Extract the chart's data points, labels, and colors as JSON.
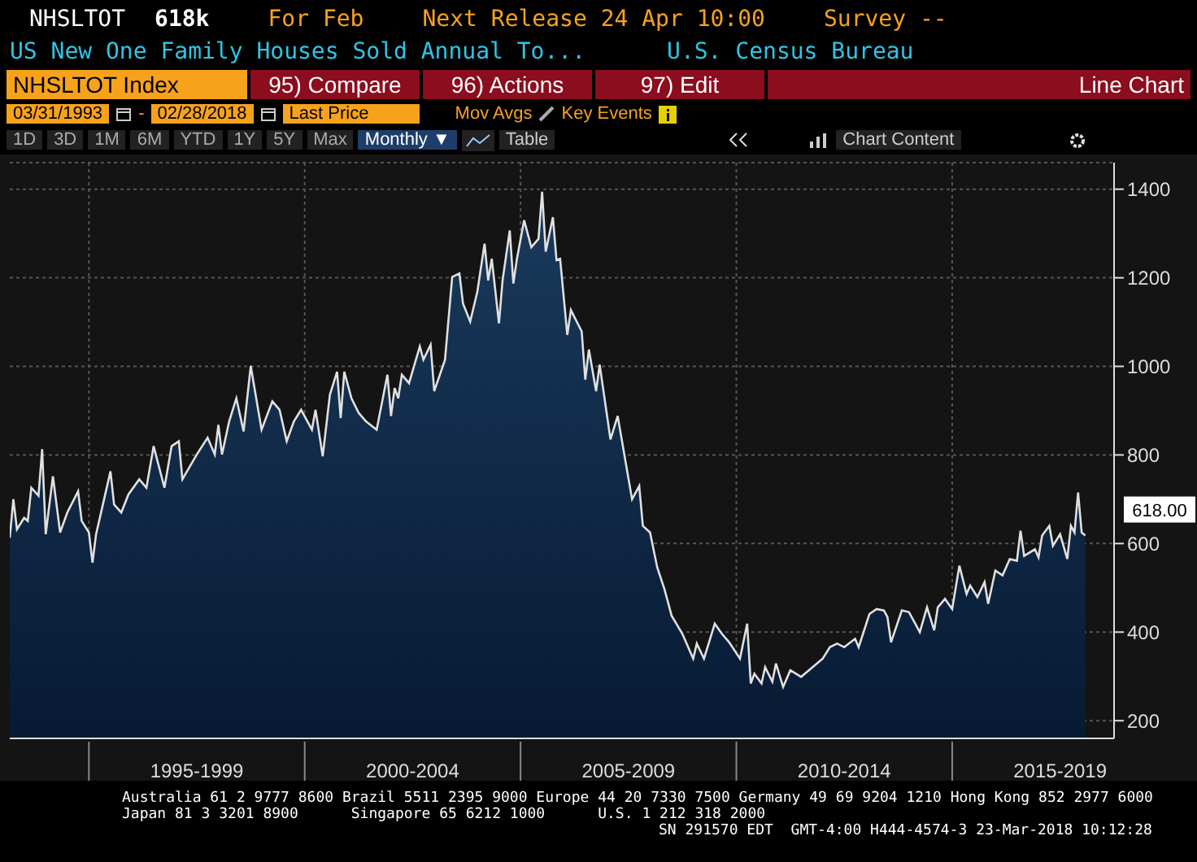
{
  "chart_data": {
    "type": "area",
    "title": "US New One Family Houses Sold Annual To...",
    "annotations": [
      "NHSLTOT",
      "618k",
      "For Feb",
      "Next Release 24 Apr 10:00",
      "Survey --",
      "U.S. Census Bureau",
      "NHSLTOT Index",
      "95) Compare",
      "96) Actions",
      "97) Edit",
      "Line Chart",
      "03/31/1993",
      "-",
      "02/28/2018",
      "Last Price",
      "Mov Avgs",
      "Key Events",
      "1D",
      "3D",
      "1M",
      "6M",
      "YTD",
      "1Y",
      "5Y",
      "Max",
      "Monthly ▼",
      "Table",
      "Chart Content",
      "Australia 61 2 9777 8600 Brazil 5511 2395 9000 Europe 44 20 7330 7500 Germany 49 69 9204 1210 Hong Kong 852 2977 6000",
      "Japan 81 3 3201 8900      Singapore 65 6212 1000      U.S. 1 212 318 2000",
      "SN 291570 EDT  GMT-4:00 H444-4574-3 23-Mar-2018 10:12:28",
      {
        "text": "618.00",
        "x": "2018-02",
        "y": 618
      }
    ],
    "x": [
      "1993-03",
      "1993-04",
      "1993-05",
      "1993-07",
      "1993-08",
      "1993-09",
      "1993-11",
      "1993-12",
      "1994-01",
      "1994-03",
      "1994-04",
      "1994-05",
      "1994-07",
      "1994-10",
      "1994-11",
      "1995-01",
      "1995-02",
      "1995-03",
      "1995-07",
      "1995-08",
      "1995-10",
      "1995-12",
      "1996-03",
      "1996-05",
      "1996-07",
      "1996-10",
      "1996-12",
      "1997-02",
      "1997-03",
      "1997-07",
      "1997-10",
      "1997-12",
      "1998-01",
      "1998-02",
      "1998-04",
      "1998-06",
      "1998-08",
      "1998-10",
      "1999-01",
      "1999-04",
      "1999-06",
      "1999-08",
      "1999-10",
      "1999-12",
      "2000-03",
      "2000-04",
      "2000-06",
      "2000-08",
      "2000-10",
      "2000-11",
      "2000-12",
      "2001-02",
      "2001-04",
      "2001-06",
      "2001-09",
      "2001-12",
      "2002-01",
      "2002-02",
      "2002-03",
      "2002-04",
      "2002-06",
      "2002-09",
      "2002-10",
      "2002-12",
      "2003-01",
      "2003-04",
      "2003-06",
      "2003-08",
      "2003-09",
      "2003-11",
      "2004-01",
      "2004-03",
      "2004-04",
      "2004-05",
      "2004-07",
      "2004-08",
      "2004-10",
      "2004-11",
      "2004-12",
      "2005-02",
      "2005-04",
      "2005-06",
      "2005-07",
      "2005-08",
      "2005-10",
      "2005-11",
      "2005-12",
      "2006-02",
      "2006-03",
      "2006-06",
      "2006-07",
      "2006-08",
      "2006-10",
      "2006-11",
      "2007-02",
      "2007-04",
      "2007-06",
      "2007-08",
      "2007-10",
      "2007-11",
      "2008-01",
      "2008-03",
      "2008-05",
      "2008-07",
      "2008-10",
      "2009-01",
      "2009-02",
      "2009-04",
      "2009-07",
      "2009-09",
      "2009-11",
      "2010-02",
      "2010-04",
      "2010-05",
      "2010-06",
      "2010-08",
      "2010-09",
      "2010-11",
      "2010-12",
      "2011-02",
      "2011-04",
      "2011-07",
      "2012-01",
      "2012-03",
      "2012-05",
      "2012-07",
      "2012-10",
      "2012-11",
      "2013-02",
      "2013-04",
      "2013-06",
      "2013-07",
      "2013-08",
      "2013-11",
      "2014-01",
      "2014-04",
      "2014-06",
      "2014-08",
      "2014-09",
      "2014-11",
      "2015-01",
      "2015-03",
      "2015-05",
      "2015-06",
      "2015-08",
      "2015-10",
      "2015-11",
      "2016-01",
      "2016-03",
      "2016-05",
      "2016-07",
      "2016-08",
      "2016-09",
      "2016-12",
      "2017-01",
      "2017-02",
      "2017-04",
      "2017-05",
      "2017-07",
      "2017-09",
      "2017-10",
      "2017-11",
      "2017-12",
      "2018-01",
      "2018-02"
    ],
    "series": [
      {
        "color": "#e0e0e0",
        "values": [
          613,
          700,
          632,
          658,
          651,
          726,
          708,
          813,
          621,
          752,
          688,
          625,
          670,
          718,
          651,
          625,
          557,
          621,
          763,
          688,
          670,
          711,
          745,
          726,
          820,
          726,
          820,
          831,
          745,
          801,
          839,
          801,
          868,
          801,
          876,
          928,
          853,
          1001,
          857,
          921,
          902,
          831,
          876,
          902,
          857,
          902,
          797,
          936,
          988,
          883,
          988,
          928,
          895,
          876,
          857,
          981,
          888,
          951,
          928,
          981,
          962,
          1045,
          1015,
          1049,
          944,
          1015,
          1202,
          1210,
          1142,
          1101,
          1169,
          1277,
          1194,
          1243,
          1097,
          1194,
          1307,
          1187,
          1243,
          1330,
          1269,
          1288,
          1394,
          1259,
          1337,
          1240,
          1243,
          1071,
          1127,
          1079,
          970,
          1038,
          944,
          1004,
          835,
          888,
          794,
          700,
          730,
          640,
          625,
          546,
          497,
          437,
          396,
          340,
          374,
          340,
          419,
          396,
          377,
          340,
          419,
          284,
          306,
          284,
          321,
          288,
          329,
          276,
          314,
          299,
          340,
          366,
          374,
          366,
          385,
          366,
          441,
          452,
          449,
          434,
          377,
          449,
          445,
          400,
          456,
          404,
          456,
          475,
          452,
          550,
          486,
          505,
          479,
          513,
          464,
          539,
          528,
          565,
          561,
          629,
          572,
          587,
          569,
          618,
          640,
          595,
          621,
          565,
          640,
          625,
          715,
          625,
          618
        ]
      }
    ],
    "xlim": [
      "1993-03",
      "2018-10"
    ],
    "xticks": [
      {
        "value": "1995-01",
        "label": null
      },
      {
        "value": "1997-07",
        "label": "1995-1999"
      },
      {
        "value": "2000-01",
        "label": null
      },
      {
        "value": "2002-07",
        "label": "2000-2004"
      },
      {
        "value": "2005-01",
        "label": null
      },
      {
        "value": "2007-07",
        "label": "2005-2009"
      },
      {
        "value": "2010-01",
        "label": null
      },
      {
        "value": "2012-07",
        "label": "2010-2014"
      },
      {
        "value": "2015-01",
        "label": null
      },
      {
        "value": "2017-07",
        "label": "2015-2019"
      }
    ],
    "ylim": [
      160,
      1460
    ],
    "yticks": [
      200,
      400,
      600,
      800,
      1000,
      1200,
      1400
    ],
    "grid": true
  }
}
